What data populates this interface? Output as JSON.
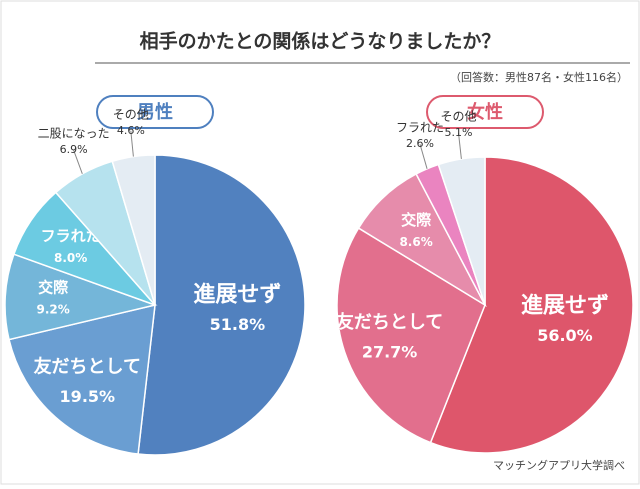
{
  "title": "相手のかたとの関係はどうなりましたか？",
  "note": "（回答数：男性87名・女性116名）",
  "source": "マッチングアプリ大学調べ",
  "chart_data": [
    {
      "type": "pie",
      "title": "男性",
      "color": "#4f80bf",
      "categories": [
        "進展せず",
        "友だちとして",
        "交際",
        "フラれた",
        "二股になった",
        "その他"
      ],
      "values": [
        51.8,
        19.5,
        9.2,
        8.0,
        6.9,
        4.6
      ],
      "value_labels": [
        "51.8%",
        "19.5%",
        "9.2%",
        "8.0%",
        "6.9%",
        "4.6%"
      ],
      "colors": [
        "#5181bf",
        "#6a9ed2",
        "#74b6d9",
        "#6ccbe2",
        "#b6e2ee",
        "#e4ecf3"
      ]
    },
    {
      "type": "pie",
      "title": "女性",
      "color": "#dd5a6e",
      "categories": [
        "進展せず",
        "友だちとして",
        "交際",
        "フラれた",
        "その他"
      ],
      "values": [
        56.0,
        27.7,
        8.6,
        2.6,
        5.1
      ],
      "value_labels": [
        "56.0%",
        "27.7%",
        "8.6%",
        "2.6%",
        "5.1%"
      ],
      "colors": [
        "#de566b",
        "#e26f8d",
        "#e68cab",
        "#ea84c0",
        "#e4ecf3"
      ]
    }
  ]
}
